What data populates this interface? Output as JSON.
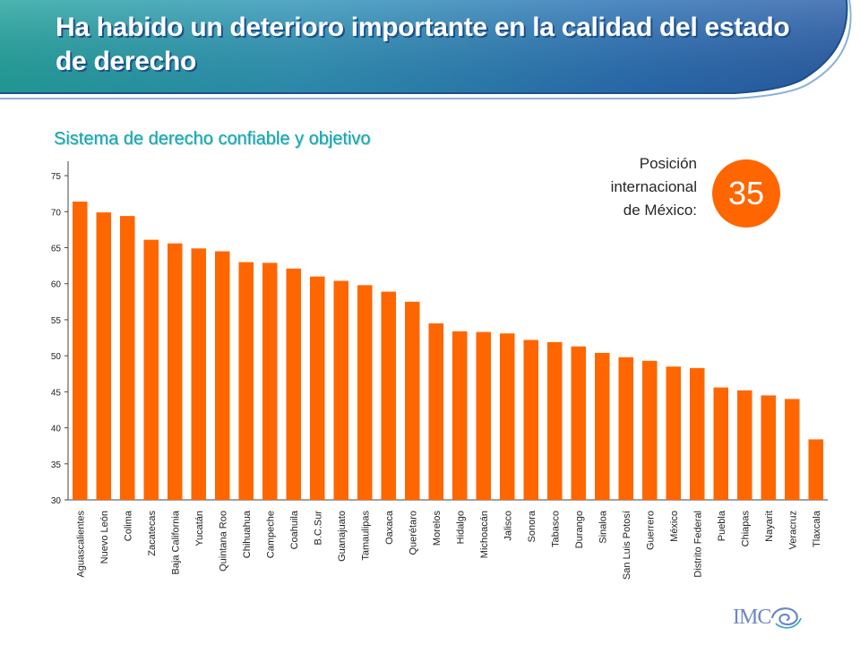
{
  "header": {
    "title": "Ha habido un deterioro importante en la calidad del estado de derecho"
  },
  "rank": {
    "label_lines": [
      "Posición",
      "internacional",
      "de México:"
    ],
    "value": "35"
  },
  "logo": {
    "text": "IMC"
  },
  "colors": {
    "bar": "#ff6600",
    "badge": "#ff6600",
    "subtitle": "#18a3b0",
    "banner_teal": "#1aa3a8",
    "banner_blue": "#2a60b0"
  },
  "chart_data": {
    "type": "bar",
    "title": "Sistema de derecho confiable y objetivo",
    "xlabel": "",
    "ylabel": "",
    "ylim": [
      30,
      77
    ],
    "yticks": [
      30,
      35,
      40,
      45,
      50,
      55,
      60,
      65,
      70,
      75
    ],
    "grid": false,
    "legend": "none",
    "categories": [
      "Aguascalientes",
      "Nuevo León",
      "Colima",
      "Zacatecas",
      "Baja California",
      "Yucatán",
      "Quintana Roo",
      "Chihuahua",
      "Campeche",
      "Coahuila",
      "B.C.Sur",
      "Guanajuato",
      "Tamaulipas",
      "Oaxaca",
      "Querétaro",
      "Morelos",
      "Hidalgo",
      "Michoacán",
      "Jalisco",
      "Sonora",
      "Tabasco",
      "Durango",
      "Sinaloa",
      "San Luis Potosí",
      "Guerrero",
      "México",
      "Distrito Federal",
      "Puebla",
      "Chiapas",
      "Nayarit",
      "Veracruz",
      "Tlaxcala"
    ],
    "values": [
      71.4,
      69.9,
      69.4,
      66.1,
      65.6,
      64.9,
      64.5,
      63.0,
      62.9,
      62.1,
      61.0,
      60.4,
      59.8,
      58.9,
      57.5,
      54.5,
      53.4,
      53.3,
      53.1,
      52.2,
      51.9,
      51.3,
      50.4,
      49.8,
      49.3,
      48.5,
      48.3,
      45.6,
      45.2,
      44.5,
      44.0,
      38.4
    ]
  }
}
